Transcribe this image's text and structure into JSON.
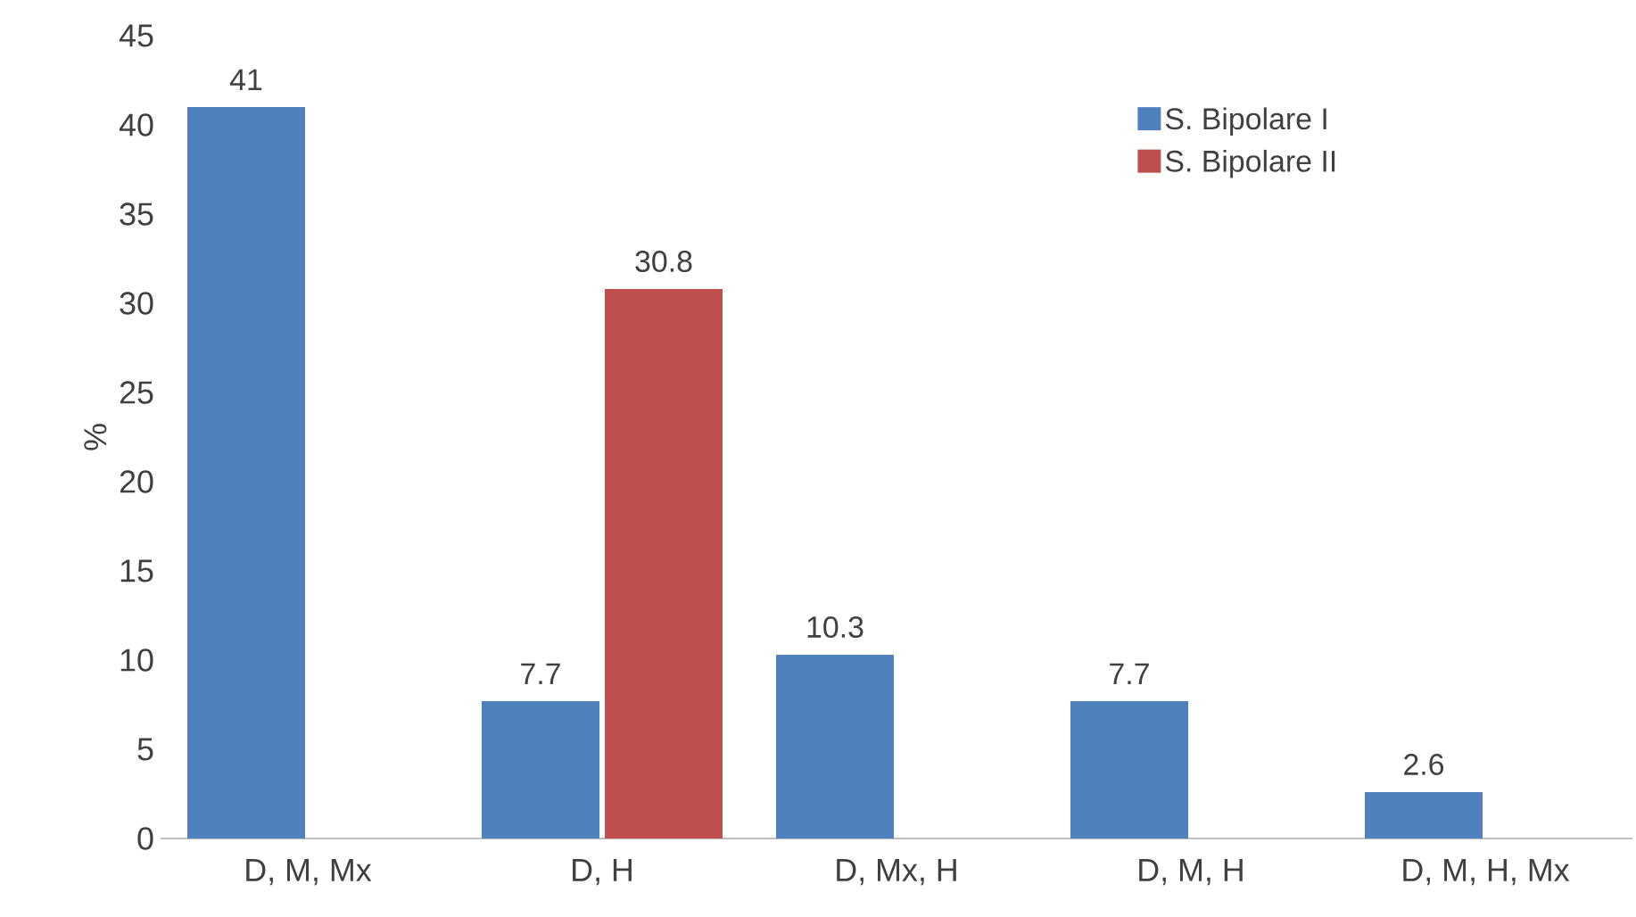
{
  "chart_data": {
    "type": "bar",
    "ylabel": "%",
    "categories": [
      "D, M, Mx",
      "D, H",
      "D, Mx, H",
      "D, M, H",
      "D, M, H, Mx"
    ],
    "series": [
      {
        "name": "S. Bipolare I",
        "color": "#4f81bd",
        "values": [
          41,
          7.7,
          10.3,
          7.7,
          2.6
        ]
      },
      {
        "name": "S. Bipolare II",
        "color": "#c0504d",
        "values": [
          null,
          30.8,
          null,
          null,
          null
        ]
      }
    ],
    "ylim": [
      0,
      45
    ],
    "yticks": [
      0,
      5,
      10,
      15,
      20,
      25,
      30,
      35,
      40,
      45
    ],
    "data_labels": true,
    "legend": "top right",
    "grid": false
  }
}
